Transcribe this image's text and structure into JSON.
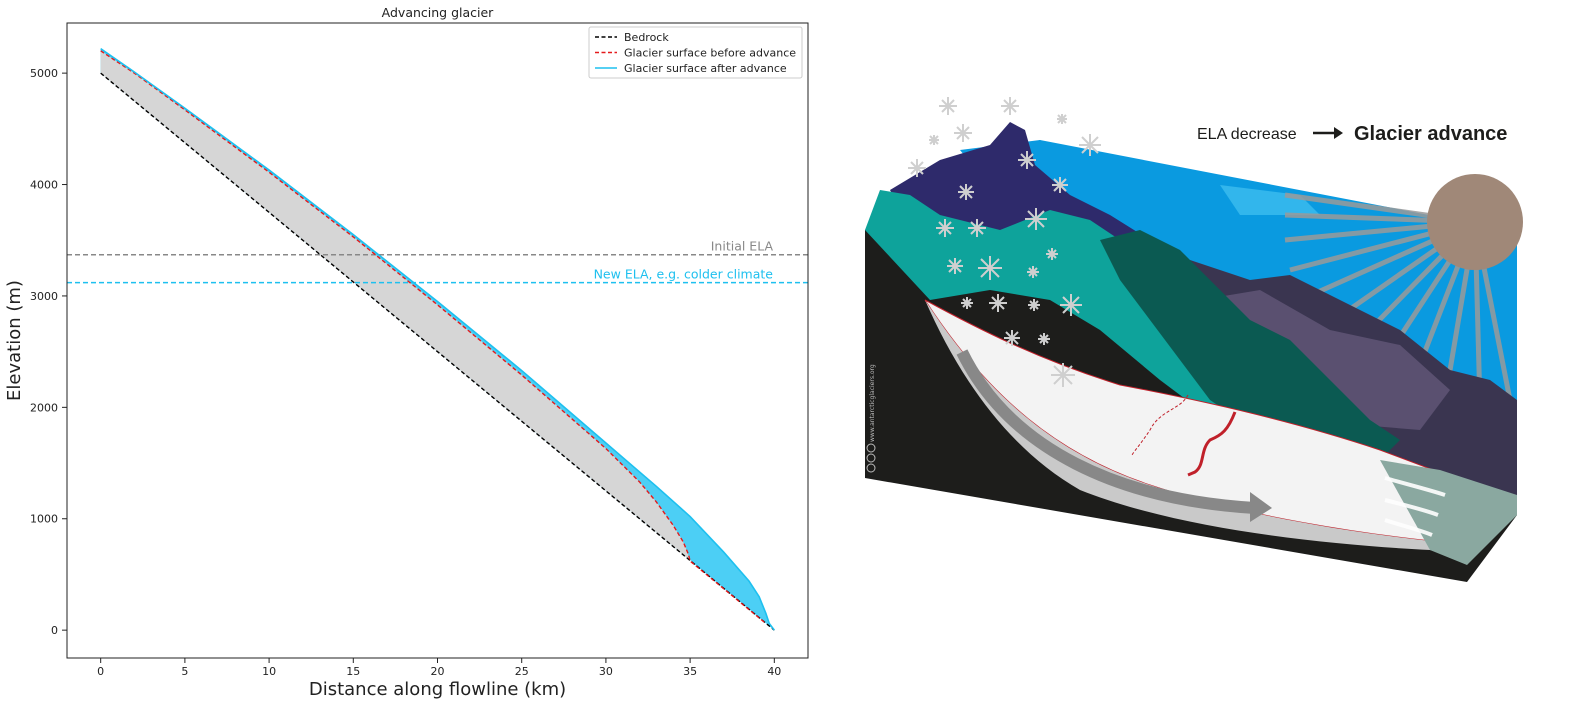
{
  "chart_data": {
    "type": "line",
    "title": "Advancing glacier",
    "xlabel": "Distance along flowline (km)",
    "ylabel": "Elevation (m)",
    "xlim": [
      -2,
      42
    ],
    "ylim": [
      -250,
      5450
    ],
    "xticks": [
      0,
      5,
      10,
      15,
      20,
      25,
      30,
      35,
      40
    ],
    "yticks": [
      0,
      1000,
      2000,
      3000,
      4000,
      5000
    ],
    "legend_position": "top-right",
    "grid": false,
    "series": [
      {
        "name": "Bedrock",
        "color": "#000000",
        "style": "dashed",
        "x": [
          0,
          40
        ],
        "y": [
          5000,
          0
        ]
      },
      {
        "name": "Glacier surface before advance",
        "color": "#e41a1c",
        "style": "dashed",
        "x": [
          0,
          2,
          5,
          10,
          15,
          20,
          25,
          30,
          32,
          33,
          34,
          34.6,
          34.9,
          35.0,
          39.5
        ],
        "y": [
          5200,
          5000,
          4670,
          4110,
          3530,
          2920,
          2290,
          1630,
          1330,
          1150,
          940,
          790,
          680,
          620,
          60
        ]
      },
      {
        "name": "Glacier surface after advance",
        "color": "#1ec0ef",
        "style": "solid",
        "x": [
          0,
          2,
          5,
          10,
          15,
          20,
          25,
          30,
          33,
          35,
          37,
          38.5,
          39.1,
          39.5,
          39.7,
          40.0
        ],
        "y": [
          5220,
          5010,
          4685,
          4130,
          3550,
          2950,
          2330,
          1680,
          1290,
          1020,
          700,
          440,
          300,
          150,
          60,
          0
        ]
      }
    ],
    "hlines": [
      {
        "label": "Initial ELA",
        "y": 3370,
        "color": "#888888"
      },
      {
        "label": "New ELA, e.g. colder climate",
        "y": 3120,
        "color": "#1ec0ef"
      }
    ]
  },
  "illustration": {
    "heading_left": "ELA decrease",
    "heading_right": "Glacier advance",
    "credit": "www.antarcticglaciers.org",
    "colors": {
      "sky": "#0a9ae0",
      "sun": "#a08878",
      "rock": "#1d1d1b",
      "ice": "#f2f2f2",
      "teal": "#0ea39b",
      "dark_teal": "#0b5a52",
      "purple": "#2e2a6b",
      "ela_line": "#c0202a",
      "flow_arrow": "#888888"
    }
  }
}
